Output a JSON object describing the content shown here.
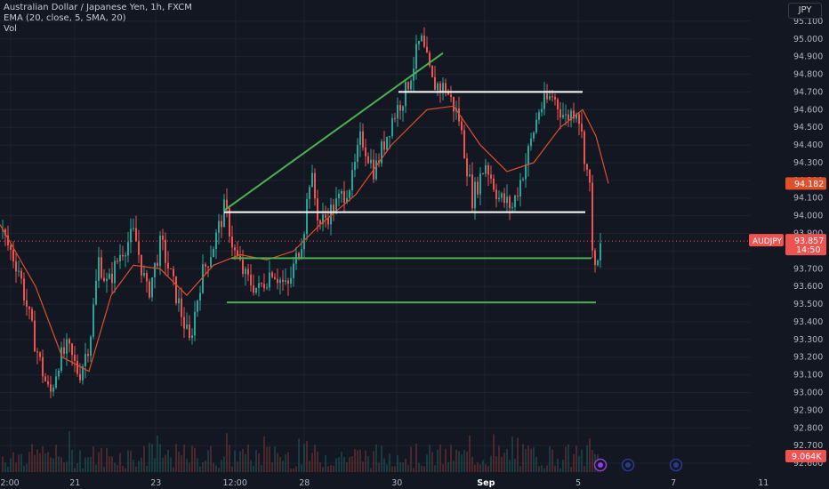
{
  "chart_data": {
    "type": "candlestick",
    "title": "Australian Dollar / Japanese Yen, 1h, FXCM",
    "indicators": [
      "EMA (20, close, 5, SMA, 20)",
      "Vol"
    ],
    "currency": "JPY",
    "symbol": "AUDJPY",
    "last_price": "93.857",
    "countdown": "14:50",
    "ema_label": "94.182",
    "volume_label": "9.064K",
    "ylim": [
      92.55,
      95.22
    ],
    "y_ticks": [
      "95.100",
      "95.000",
      "94.900",
      "94.800",
      "94.700",
      "94.600",
      "94.500",
      "94.400",
      "94.300",
      "94.200",
      "94.100",
      "94.000",
      "93.900",
      "93.800",
      "93.700",
      "93.600",
      "93.500",
      "93.400",
      "93.300",
      "93.200",
      "93.100",
      "93.000",
      "92.900",
      "92.800",
      "92.700",
      "92.600"
    ],
    "x_ticks": [
      "2:00",
      "21",
      "23",
      "12:00",
      "28",
      "30",
      "Sep",
      "5",
      "7",
      "11"
    ],
    "price_path": [
      {
        "t": 0,
        "p": 93.92
      },
      {
        "t": 20,
        "p": 93.7
      },
      {
        "t": 35,
        "p": 93.35
      },
      {
        "t": 45,
        "p": 93.15
      },
      {
        "t": 55,
        "p": 92.98
      },
      {
        "t": 65,
        "p": 93.18
      },
      {
        "t": 75,
        "p": 93.25
      },
      {
        "t": 88,
        "p": 93.1
      },
      {
        "t": 100,
        "p": 93.3
      },
      {
        "t": 110,
        "p": 93.75
      },
      {
        "t": 120,
        "p": 93.6
      },
      {
        "t": 135,
        "p": 93.8
      },
      {
        "t": 150,
        "p": 93.9
      },
      {
        "t": 165,
        "p": 93.55
      },
      {
        "t": 180,
        "p": 93.85
      },
      {
        "t": 200,
        "p": 93.5
      },
      {
        "t": 212,
        "p": 93.28
      },
      {
        "t": 225,
        "p": 93.65
      },
      {
        "t": 240,
        "p": 93.85
      },
      {
        "t": 252,
        "p": 94.05
      },
      {
        "t": 262,
        "p": 93.8
      },
      {
        "t": 275,
        "p": 93.65
      },
      {
        "t": 290,
        "p": 93.58
      },
      {
        "t": 305,
        "p": 93.7
      },
      {
        "t": 322,
        "p": 93.58
      },
      {
        "t": 340,
        "p": 93.9
      },
      {
        "t": 348,
        "p": 94.25
      },
      {
        "t": 358,
        "p": 93.95
      },
      {
        "t": 375,
        "p": 94.05
      },
      {
        "t": 395,
        "p": 94.2
      },
      {
        "t": 405,
        "p": 94.45
      },
      {
        "t": 420,
        "p": 94.25
      },
      {
        "t": 440,
        "p": 94.55
      },
      {
        "t": 455,
        "p": 94.7
      },
      {
        "t": 472,
        "p": 95.0
      },
      {
        "t": 485,
        "p": 94.75
      },
      {
        "t": 500,
        "p": 94.72
      },
      {
        "t": 515,
        "p": 94.55
      },
      {
        "t": 530,
        "p": 94.1
      },
      {
        "t": 545,
        "p": 94.3
      },
      {
        "t": 560,
        "p": 94.1
      },
      {
        "t": 575,
        "p": 94.05
      },
      {
        "t": 590,
        "p": 94.3
      },
      {
        "t": 605,
        "p": 94.6
      },
      {
        "t": 620,
        "p": 94.68
      },
      {
        "t": 635,
        "p": 94.55
      },
      {
        "t": 648,
        "p": 94.62
      },
      {
        "t": 656,
        "p": 94.35
      },
      {
        "t": 662,
        "p": 94.15
      },
      {
        "t": 667,
        "p": 93.65
      },
      {
        "t": 672,
        "p": 93.75
      },
      {
        "t": 675,
        "p": 93.857
      }
    ],
    "ema_path": [
      {
        "t": 0,
        "p": 93.95
      },
      {
        "t": 40,
        "p": 93.6
      },
      {
        "t": 70,
        "p": 93.2
      },
      {
        "t": 100,
        "p": 93.12
      },
      {
        "t": 125,
        "p": 93.55
      },
      {
        "t": 150,
        "p": 93.72
      },
      {
        "t": 180,
        "p": 93.7
      },
      {
        "t": 210,
        "p": 93.55
      },
      {
        "t": 240,
        "p": 93.72
      },
      {
        "t": 270,
        "p": 93.78
      },
      {
        "t": 300,
        "p": 93.75
      },
      {
        "t": 330,
        "p": 93.8
      },
      {
        "t": 360,
        "p": 93.95
      },
      {
        "t": 400,
        "p": 94.12
      },
      {
        "t": 440,
        "p": 94.4
      },
      {
        "t": 480,
        "p": 94.6
      },
      {
        "t": 510,
        "p": 94.62
      },
      {
        "t": 540,
        "p": 94.4
      },
      {
        "t": 570,
        "p": 94.25
      },
      {
        "t": 600,
        "p": 94.3
      },
      {
        "t": 630,
        "p": 94.5
      },
      {
        "t": 655,
        "p": 94.6
      },
      {
        "t": 670,
        "p": 94.45
      },
      {
        "t": 684,
        "p": 94.182
      }
    ],
    "drawings": [
      {
        "type": "trendline",
        "color": "#4caf50",
        "from": {
          "t": 252,
          "p": 94.03
        },
        "to": {
          "t": 498,
          "p": 94.92
        }
      },
      {
        "type": "horizontal",
        "color": "#ffffff",
        "from": {
          "t": 252,
          "p": 94.02
        },
        "to": {
          "t": 658,
          "p": 94.02
        }
      },
      {
        "type": "horizontal",
        "color": "#ffffff",
        "from": {
          "t": 448,
          "p": 94.7
        },
        "to": {
          "t": 655,
          "p": 94.7
        }
      },
      {
        "type": "horizontal",
        "color": "#4caf50",
        "from": {
          "t": 260,
          "p": 93.76
        },
        "to": {
          "t": 665,
          "p": 93.76
        }
      },
      {
        "type": "horizontal",
        "color": "#4caf50",
        "from": {
          "t": 255,
          "p": 93.51
        },
        "to": {
          "t": 670,
          "p": 93.51
        }
      }
    ]
  }
}
